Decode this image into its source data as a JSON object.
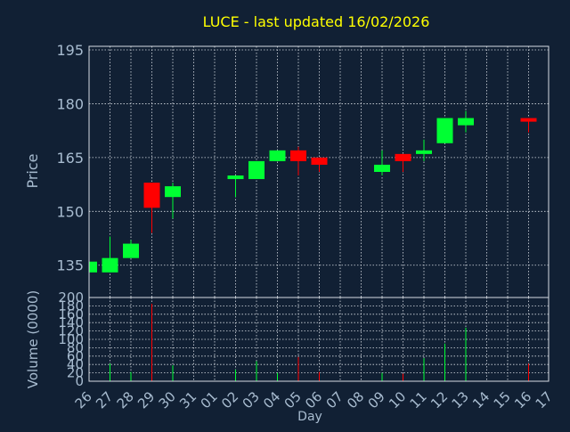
{
  "chart_data": {
    "type": "candlestick",
    "title": "LUCE - last updated 16/02/2026",
    "xlabel": "Day",
    "ylabel": "Price",
    "volume_ylabel": "Volume (0000)",
    "price_ylim": [
      126,
      196
    ],
    "price_ticks": [
      135,
      150,
      165,
      180,
      195
    ],
    "volume_ylim": [
      0,
      200
    ],
    "volume_ticks": [
      0,
      20,
      40,
      60,
      80,
      100,
      120,
      140,
      160,
      180,
      200
    ],
    "grid": true,
    "x_ticks": [
      "26",
      "27",
      "28",
      "29",
      "30",
      "31",
      "01",
      "02",
      "03",
      "04",
      "05",
      "06",
      "07",
      "08",
      "09",
      "10",
      "11",
      "12",
      "13",
      "14",
      "15",
      "16",
      "17"
    ],
    "candles": [
      {
        "day": "26",
        "open": 133,
        "close": 136,
        "high": 136,
        "low": 133,
        "volume": 2
      },
      {
        "day": "27",
        "open": 133,
        "close": 137,
        "high": 143,
        "low": 133,
        "volume": 42
      },
      {
        "day": "28",
        "open": 137,
        "close": 141,
        "high": 142,
        "low": 137,
        "volume": 22
      },
      {
        "day": "29",
        "open": 158,
        "close": 151,
        "high": 158,
        "low": 144,
        "volume": 185
      },
      {
        "day": "30",
        "open": 154,
        "close": 157,
        "high": 158,
        "low": 148,
        "volume": 38
      },
      {
        "day": "02",
        "open": 159,
        "close": 160,
        "high": 160,
        "low": 154,
        "volume": 28
      },
      {
        "day": "03",
        "open": 159,
        "close": 164,
        "high": 164,
        "low": 159,
        "volume": 48
      },
      {
        "day": "04",
        "open": 164,
        "close": 167,
        "high": 167,
        "low": 164,
        "volume": 20
      },
      {
        "day": "05",
        "open": 167,
        "close": 164,
        "high": 168,
        "low": 160,
        "volume": 58
      },
      {
        "day": "06",
        "open": 165,
        "close": 163,
        "high": 165,
        "low": 161,
        "volume": 22
      },
      {
        "day": "09",
        "open": 161,
        "close": 163,
        "high": 167,
        "low": 160,
        "volume": 20
      },
      {
        "day": "10",
        "open": 166,
        "close": 164,
        "high": 166,
        "low": 161,
        "volume": 18
      },
      {
        "day": "11",
        "open": 166,
        "close": 167,
        "high": 170,
        "low": 164,
        "volume": 55
      },
      {
        "day": "12",
        "open": 169,
        "close": 176,
        "high": 176,
        "low": 169,
        "volume": 90
      },
      {
        "day": "13",
        "open": 174,
        "close": 176,
        "high": 178,
        "low": 172,
        "volume": 128
      },
      {
        "day": "16",
        "open": 176,
        "close": 175,
        "high": 176,
        "low": 172,
        "volume": 42
      }
    ],
    "colors": {
      "up": "#00ff33",
      "down": "#ff0000",
      "background": "#112034",
      "axis_text": "#a8bcd0",
      "title": "#ffff00",
      "grid": "#d8dde3"
    }
  }
}
